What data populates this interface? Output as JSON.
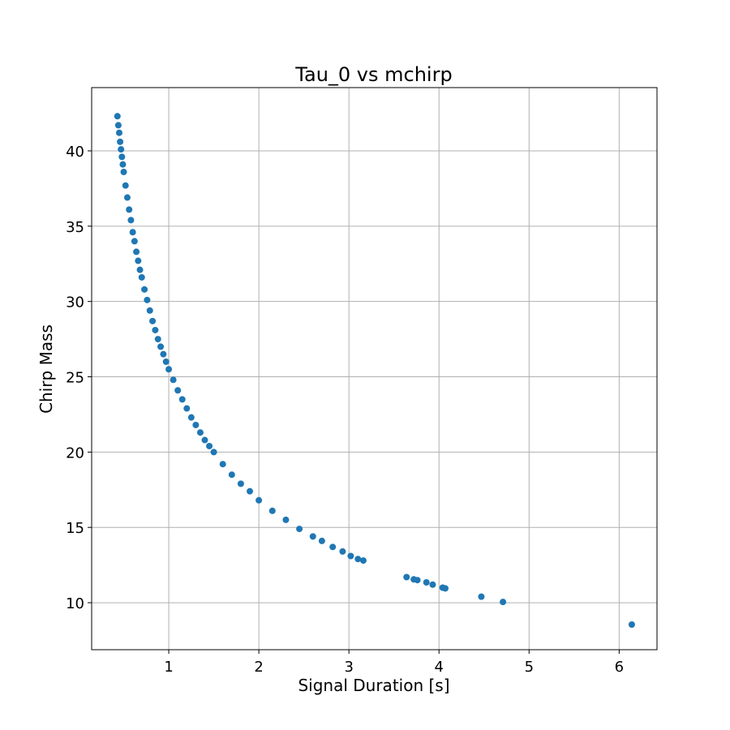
{
  "chart_data": {
    "type": "scatter",
    "title": "Tau_0 vs mchirp",
    "x_label": "Signal Duration [s]",
    "y_label": "Chirp Mass",
    "series": [
      {
        "color": "#1f77b4",
        "x": [
          0.43,
          0.44,
          0.45,
          0.46,
          0.47,
          0.48,
          0.49,
          0.5,
          0.52,
          0.54,
          0.56,
          0.58,
          0.6,
          0.62,
          0.64,
          0.66,
          0.68,
          0.7,
          0.73,
          0.76,
          0.79,
          0.82,
          0.85,
          0.88,
          0.91,
          0.94,
          0.97,
          1.0,
          1.05,
          1.1,
          1.15,
          1.2,
          1.25,
          1.3,
          1.35,
          1.4,
          1.45,
          1.5,
          1.6,
          1.7,
          1.8,
          1.9,
          2.0,
          2.15,
          2.3,
          2.45,
          2.6,
          2.7,
          2.82,
          2.93,
          3.02,
          3.1,
          3.16,
          3.64,
          3.72,
          3.76,
          3.86,
          3.93,
          4.04,
          4.07,
          4.47,
          4.71,
          6.14
        ],
        "values": [
          42.3,
          41.7,
          41.2,
          40.6,
          40.1,
          39.6,
          39.1,
          38.6,
          37.7,
          36.9,
          36.1,
          35.4,
          34.6,
          34.0,
          33.3,
          32.7,
          32.1,
          31.6,
          30.8,
          30.1,
          29.4,
          28.7,
          28.1,
          27.5,
          27.0,
          26.5,
          26.0,
          25.5,
          24.8,
          24.1,
          23.5,
          22.9,
          22.3,
          21.8,
          21.3,
          20.8,
          20.4,
          20.0,
          19.2,
          18.5,
          17.9,
          17.4,
          16.8,
          16.1,
          15.5,
          14.9,
          14.4,
          14.1,
          13.7,
          13.4,
          13.1,
          12.9,
          12.8,
          11.7,
          11.55,
          11.5,
          11.35,
          11.2,
          11.0,
          10.95,
          10.4,
          10.05,
          8.55
        ]
      }
    ],
    "xlim": [
      0.144,
      6.42
    ],
    "ylim": [
      6.88,
      44.2
    ],
    "xticks": [
      1,
      2,
      3,
      4,
      5,
      6
    ],
    "yticks": [
      10,
      15,
      20,
      25,
      30,
      35,
      40
    ],
    "grid": true
  }
}
